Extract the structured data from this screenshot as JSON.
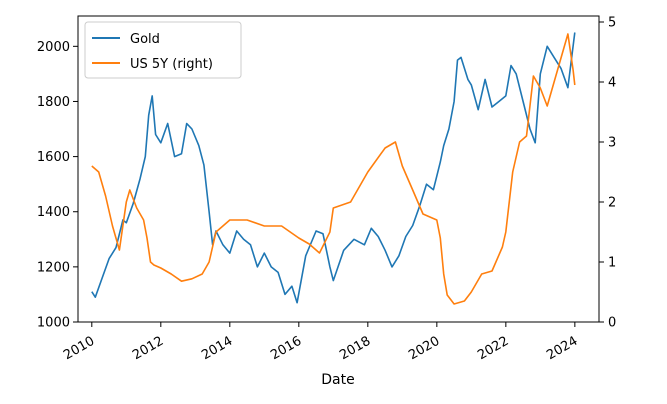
{
  "chart_data": {
    "type": "line",
    "title": "",
    "xlabel": "Date",
    "ylabel_left": "",
    "ylabel_right": "",
    "x_ticks": [
      "2010",
      "2012",
      "2014",
      "2016",
      "2018",
      "2020",
      "2022",
      "2024"
    ],
    "y_left_ticks": [
      "1000",
      "1200",
      "1400",
      "1600",
      "1800",
      "2000"
    ],
    "y_right_ticks": [
      "0",
      "1",
      "2",
      "3",
      "4",
      "5"
    ],
    "xlim": [
      2009.6,
      2024.7
    ],
    "ylim_left": [
      1000,
      2110
    ],
    "ylim_right": [
      0,
      5.1
    ],
    "legend_position": "upper-left",
    "colors": {
      "gold": "#1f77b4",
      "us5y": "#ff7f0e"
    },
    "series": [
      {
        "name": "Gold",
        "axis": "left",
        "x": [
          2010.0,
          2010.1,
          2010.3,
          2010.5,
          2010.7,
          2010.9,
          2011.0,
          2011.2,
          2011.4,
          2011.55,
          2011.65,
          2011.75,
          2011.85,
          2012.0,
          2012.2,
          2012.4,
          2012.6,
          2012.75,
          2012.9,
          2013.1,
          2013.25,
          2013.4,
          2013.5,
          2013.6,
          2013.8,
          2014.0,
          2014.2,
          2014.4,
          2014.6,
          2014.8,
          2015.0,
          2015.2,
          2015.4,
          2015.6,
          2015.8,
          2015.95,
          2016.2,
          2016.5,
          2016.7,
          2016.9,
          2017.0,
          2017.3,
          2017.6,
          2017.9,
          2018.1,
          2018.3,
          2018.5,
          2018.7,
          2018.9,
          2019.1,
          2019.3,
          2019.5,
          2019.7,
          2019.9,
          2020.1,
          2020.2,
          2020.35,
          2020.5,
          2020.6,
          2020.7,
          2020.9,
          2021.0,
          2021.2,
          2021.4,
          2021.6,
          2021.8,
          2022.0,
          2022.15,
          2022.3,
          2022.5,
          2022.7,
          2022.85,
          2023.0,
          2023.2,
          2023.4,
          2023.6,
          2023.8,
          2024.0
        ],
        "values": [
          1110,
          1090,
          1160,
          1230,
          1270,
          1370,
          1360,
          1430,
          1520,
          1600,
          1750,
          1820,
          1680,
          1650,
          1720,
          1600,
          1610,
          1720,
          1700,
          1640,
          1570,
          1400,
          1280,
          1330,
          1280,
          1250,
          1330,
          1300,
          1280,
          1200,
          1250,
          1200,
          1180,
          1100,
          1130,
          1070,
          1240,
          1330,
          1320,
          1200,
          1150,
          1260,
          1300,
          1280,
          1340,
          1310,
          1260,
          1200,
          1240,
          1310,
          1350,
          1420,
          1500,
          1480,
          1580,
          1640,
          1700,
          1800,
          1950,
          1960,
          1880,
          1860,
          1770,
          1880,
          1780,
          1800,
          1820,
          1930,
          1900,
          1800,
          1700,
          1650,
          1900,
          2000,
          1960,
          1920,
          1850,
          2050
        ]
      },
      {
        "name": "US 5Y (right)",
        "axis": "right",
        "x": [
          2010.0,
          2010.2,
          2010.4,
          2010.6,
          2010.8,
          2011.0,
          2011.1,
          2011.3,
          2011.5,
          2011.6,
          2011.7,
          2011.8,
          2012.0,
          2012.3,
          2012.6,
          2012.9,
          2013.2,
          2013.4,
          2013.6,
          2013.8,
          2014.0,
          2014.5,
          2015.0,
          2015.5,
          2016.0,
          2016.3,
          2016.6,
          2016.9,
          2017.0,
          2017.5,
          2018.0,
          2018.5,
          2018.8,
          2019.0,
          2019.3,
          2019.6,
          2020.0,
          2020.1,
          2020.2,
          2020.3,
          2020.5,
          2020.8,
          2021.0,
          2021.3,
          2021.6,
          2021.9,
          2022.0,
          2022.2,
          2022.4,
          2022.6,
          2022.8,
          2023.0,
          2023.2,
          2023.4,
          2023.6,
          2023.8,
          2023.95,
          2024.0
        ],
        "values": [
          2.6,
          2.5,
          2.1,
          1.6,
          1.2,
          2.0,
          2.2,
          1.9,
          1.7,
          1.4,
          1.0,
          0.95,
          0.9,
          0.8,
          0.68,
          0.72,
          0.8,
          1.0,
          1.5,
          1.6,
          1.7,
          1.7,
          1.6,
          1.6,
          1.4,
          1.3,
          1.15,
          1.5,
          1.9,
          2.0,
          2.5,
          2.9,
          3.0,
          2.6,
          2.2,
          1.8,
          1.7,
          1.4,
          0.8,
          0.45,
          0.3,
          0.35,
          0.5,
          0.8,
          0.85,
          1.25,
          1.5,
          2.5,
          3.0,
          3.1,
          4.1,
          3.9,
          3.6,
          4.0,
          4.4,
          4.8,
          4.2,
          3.95
        ]
      }
    ]
  }
}
